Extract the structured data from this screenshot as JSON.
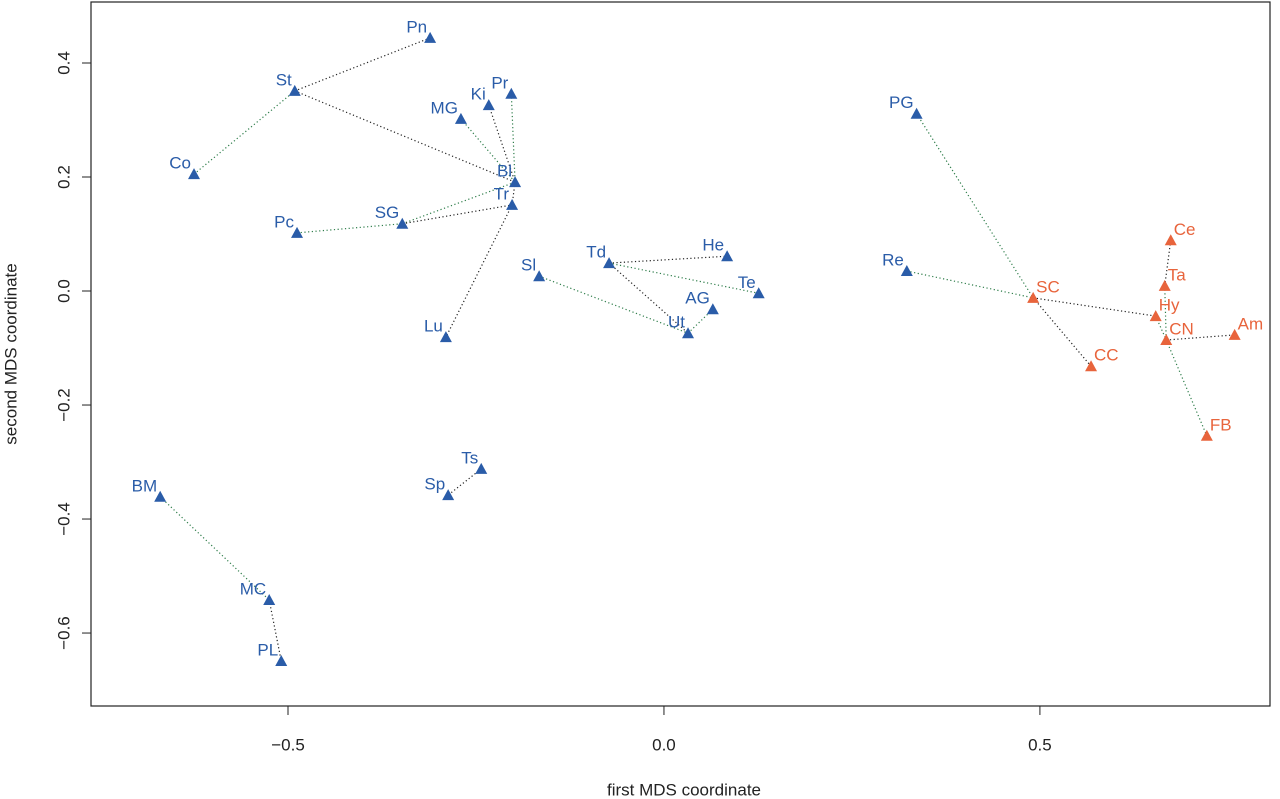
{
  "chart_data": {
    "type": "scatter",
    "xlabel": "first MDS coordinate",
    "ylabel": "second MDS coordinate",
    "xlim": [
      -0.762,
      0.806
    ],
    "ylim": [
      -0.728,
      0.507
    ],
    "xticks": [
      {
        "value": -0.5,
        "label": "−0.5"
      },
      {
        "value": 0,
        "label": "0.0"
      },
      {
        "value": 0.5,
        "label": "0.5"
      }
    ],
    "yticks": [
      0.4,
      0.2,
      {
        "value": 0,
        "label": "0.0"
      },
      {
        "value": -0.2,
        "label": "−0.2"
      },
      {
        "value": -0.4,
        "label": "−0.4"
      },
      {
        "value": -0.6,
        "label": "−0.6"
      }
    ],
    "series": [
      {
        "color": "#2a5ca8",
        "labels": [
          "Pn",
          "St",
          "Co",
          "MG",
          "Ki",
          "Pr",
          "Bl",
          "Tr",
          "Pc",
          "SG",
          "Lu",
          "Sl",
          "Td",
          "He",
          "Te",
          "AG",
          "Ut",
          "Ts",
          "Sp",
          "BM",
          "MC",
          "PL",
          "PG",
          "Re"
        ],
        "x": [
          -0.311,
          -0.491,
          -0.625,
          -0.27,
          -0.233,
          -0.203,
          -0.198,
          -0.202,
          -0.488,
          -0.348,
          -0.29,
          -0.166,
          -0.073,
          0.084,
          0.126,
          0.065,
          0.032,
          -0.243,
          -0.287,
          -0.67,
          -0.525,
          -0.509,
          0.336,
          0.323
        ],
        "values": [
          0.444,
          0.351,
          0.205,
          0.302,
          0.326,
          0.346,
          0.191,
          0.151,
          0.102,
          0.118,
          -0.081,
          0.026,
          0.049,
          0.061,
          -0.004,
          -0.032,
          -0.074,
          -0.312,
          -0.358,
          -0.361,
          -0.542,
          -0.649,
          0.311,
          0.035
        ]
      },
      {
        "color": "#e8643c",
        "labels": [
          "SC",
          "CC",
          "Ce",
          "Ta",
          "Hy",
          "CN",
          "Am",
          "FB"
        ],
        "x": [
          0.491,
          0.568,
          0.674,
          0.666,
          0.654,
          0.668,
          0.759,
          0.722
        ],
        "values": [
          -0.012,
          -0.132,
          0.089,
          0.009,
          -0.044,
          -0.086,
          -0.077,
          -0.254
        ]
      }
    ],
    "edges": [
      [
        "Pn",
        "St"
      ],
      [
        "St",
        "Co"
      ],
      [
        "St",
        "Bl"
      ],
      [
        "MG",
        "Bl"
      ],
      [
        "Ki",
        "Bl"
      ],
      [
        "Pr",
        "Bl"
      ],
      [
        "Bl",
        "Tr"
      ],
      [
        "SG",
        "Bl"
      ],
      [
        "SG",
        "Tr"
      ],
      [
        "Pc",
        "SG"
      ],
      [
        "Tr",
        "Lu"
      ],
      [
        "Sl",
        "Ut"
      ],
      [
        "Td",
        "He"
      ],
      [
        "Td",
        "Te"
      ],
      [
        "Td",
        "Ut"
      ],
      [
        "Ut",
        "AG"
      ],
      [
        "Ts",
        "Sp"
      ],
      [
        "BM",
        "MC"
      ],
      [
        "MC",
        "PL"
      ],
      [
        "PG",
        "SC"
      ],
      [
        "SC",
        "CC"
      ],
      [
        "Re",
        "SC"
      ],
      [
        "SC",
        "Hy"
      ],
      [
        "Hy",
        "CN"
      ],
      [
        "CN",
        "Am"
      ],
      [
        "CN",
        "FB"
      ],
      [
        "Ta",
        "Ce"
      ],
      [
        "Ta",
        "CN"
      ]
    ]
  }
}
